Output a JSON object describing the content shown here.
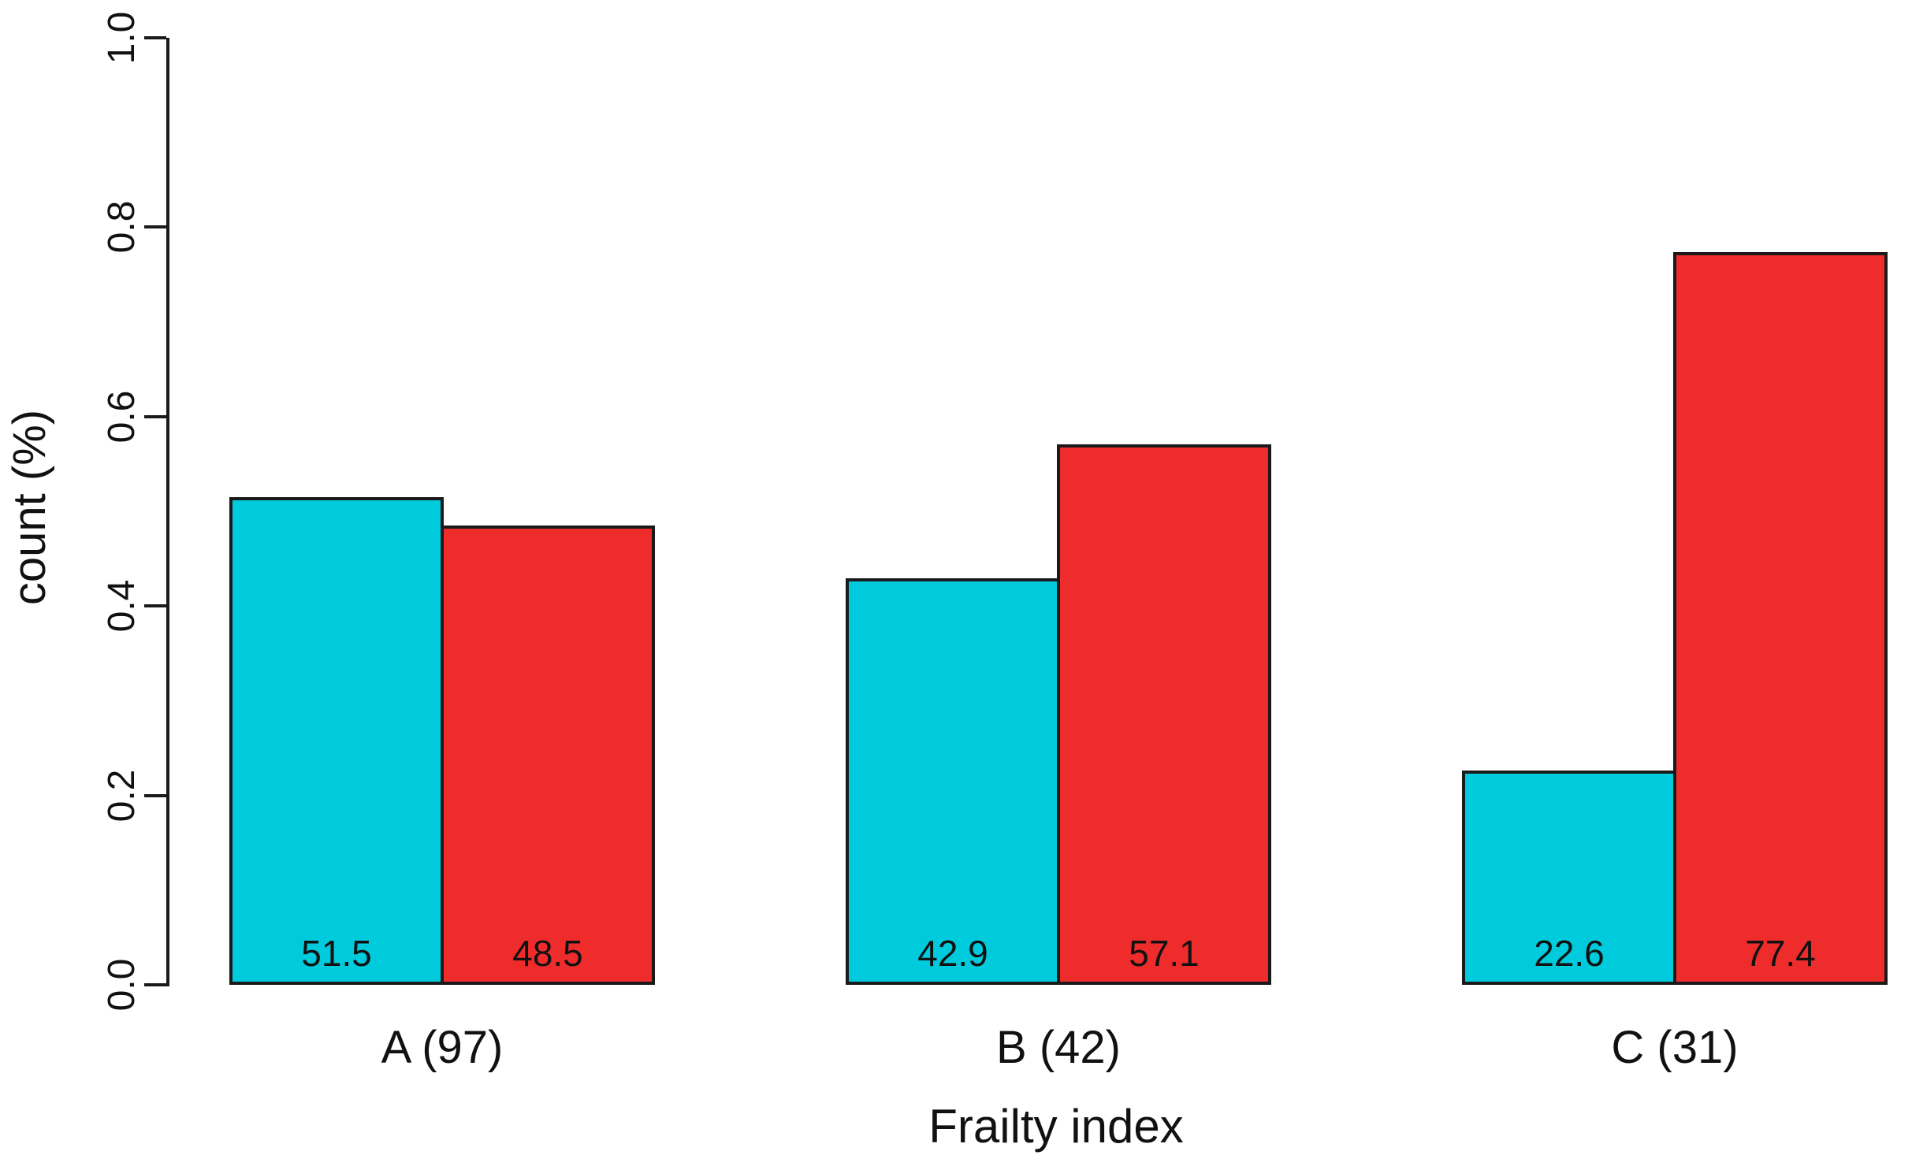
{
  "chart_data": {
    "type": "bar",
    "title": "",
    "xlabel": "Frailty index",
    "ylabel": "count (%)",
    "categories": [
      "A (97)",
      "B (42)",
      "C (31)"
    ],
    "series": [
      {
        "name": "cyan-series",
        "color": "#00CBDC",
        "values_percent": [
          51.5,
          42.9,
          22.6
        ]
      },
      {
        "name": "red-series",
        "color": "#EE2C2C",
        "values_percent": [
          48.5,
          57.1,
          77.4
        ]
      }
    ],
    "bar_value_labels": [
      [
        "51.5",
        "48.5"
      ],
      [
        "42.9",
        "57.1"
      ],
      [
        "22.6",
        "77.4"
      ]
    ],
    "y_tick_labels": [
      "0.0",
      "0.2",
      "0.4",
      "0.6",
      "0.8",
      "1.0"
    ],
    "y_tick_values": [
      0.0,
      0.2,
      0.4,
      0.6,
      0.8,
      1.0
    ],
    "ylim": [
      0.0,
      1.0
    ],
    "grid": false,
    "legend_position": "none",
    "bar_outline_color": "#1A1A1A",
    "axis_color": "#1A1A1A",
    "text_color": "#111111"
  }
}
